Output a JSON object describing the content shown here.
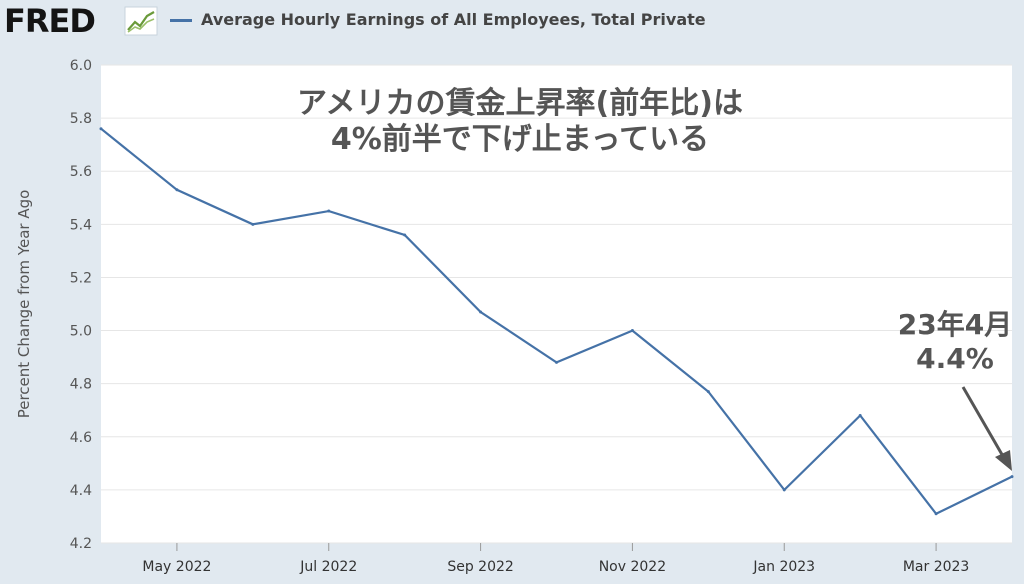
{
  "header": {
    "logo_text": "FRED",
    "logo_icon": "line-chart-icon",
    "series_title": "Average Hourly Earnings of All Employees, Total Private"
  },
  "colors": {
    "series": "#4572a7",
    "plot_background": "#ffffff",
    "page_background": "#e1e9f0",
    "gridline": "#e6e6e6",
    "arrow": "#555555"
  },
  "annotations": {
    "title_line1": "アメリカの賃金上昇率(前年比)は",
    "title_line2": "4%前半で下げ止まっている",
    "point_line1": "23年4月",
    "point_line2": "4.4%"
  },
  "chart_data": {
    "type": "line",
    "title": "",
    "xlabel": "",
    "ylabel": "Percent Change from Year Ago",
    "ylim": [
      4.2,
      6.0
    ],
    "grid": true,
    "y_ticks": [
      "4.2",
      "4.4",
      "4.6",
      "4.8",
      "5.0",
      "5.2",
      "5.4",
      "5.6",
      "5.8",
      "6.0"
    ],
    "x_tick_labels": [
      "May 2022",
      "Jul 2022",
      "Sep 2022",
      "Nov 2022",
      "Jan 2023",
      "Mar 2023"
    ],
    "x_tick_months": [
      "2022-05",
      "2022-07",
      "2022-09",
      "2022-11",
      "2023-01",
      "2023-03"
    ],
    "series": [
      {
        "name": "Average Hourly Earnings of All Employees, Total Private",
        "x": [
          "2022-04",
          "2022-05",
          "2022-06",
          "2022-07",
          "2022-08",
          "2022-09",
          "2022-10",
          "2022-11",
          "2022-12",
          "2023-01",
          "2023-02",
          "2023-03",
          "2023-04"
        ],
        "values": [
          5.76,
          5.53,
          5.4,
          5.45,
          5.36,
          5.07,
          4.88,
          5.0,
          4.77,
          4.4,
          4.68,
          4.31,
          4.45
        ]
      }
    ]
  }
}
